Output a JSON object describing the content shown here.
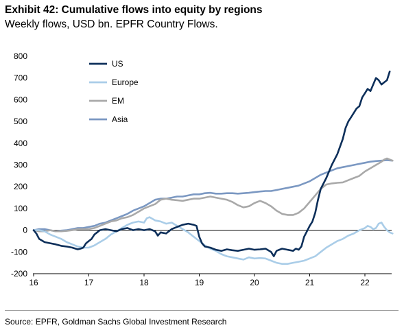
{
  "title": "Exhibit 42: Cumulative flows into equity by regions",
  "subtitle": "Weekly flows, USD bn. EPFR Country Flows.",
  "source": "Source: EPFR, Goldman Sachs Global Investment Research",
  "chart_data": {
    "type": "line",
    "xlim": [
      16,
      22.5
    ],
    "ylim": [
      -200,
      800
    ],
    "x_ticks": [
      16,
      17,
      18,
      19,
      20,
      21,
      22
    ],
    "x_tick_labels": [
      "16",
      "17",
      "18",
      "19",
      "20",
      "21",
      "22"
    ],
    "y_ticks": [
      -200,
      -100,
      0,
      100,
      200,
      300,
      400,
      500,
      600,
      700,
      800
    ],
    "y_tick_labels": [
      "-200",
      "-100",
      "0",
      "100",
      "200",
      "300",
      "400",
      "500",
      "600",
      "700",
      "800"
    ],
    "grid": false,
    "zero_line": true,
    "legend": {
      "position": "top-left",
      "entries": [
        "US",
        "Europe",
        "EM",
        "Asia"
      ]
    },
    "series": [
      {
        "name": "US",
        "color": "#0d2f5a",
        "points": [
          [
            16.0,
            0
          ],
          [
            16.05,
            -15
          ],
          [
            16.1,
            -40
          ],
          [
            16.2,
            -55
          ],
          [
            16.3,
            -60
          ],
          [
            16.4,
            -65
          ],
          [
            16.5,
            -72
          ],
          [
            16.6,
            -75
          ],
          [
            16.7,
            -80
          ],
          [
            16.8,
            -88
          ],
          [
            16.85,
            -85
          ],
          [
            16.9,
            -80
          ],
          [
            16.95,
            -60
          ],
          [
            17.0,
            -50
          ],
          [
            17.05,
            -40
          ],
          [
            17.1,
            -20
          ],
          [
            17.15,
            -10
          ],
          [
            17.2,
            0
          ],
          [
            17.3,
            5
          ],
          [
            17.4,
            0
          ],
          [
            17.5,
            -5
          ],
          [
            17.6,
            5
          ],
          [
            17.7,
            10
          ],
          [
            17.8,
            0
          ],
          [
            17.9,
            5
          ],
          [
            18.0,
            0
          ],
          [
            18.1,
            5
          ],
          [
            18.2,
            -5
          ],
          [
            18.25,
            -25
          ],
          [
            18.3,
            -10
          ],
          [
            18.4,
            -15
          ],
          [
            18.5,
            5
          ],
          [
            18.6,
            15
          ],
          [
            18.7,
            25
          ],
          [
            18.8,
            30
          ],
          [
            18.9,
            25
          ],
          [
            18.95,
            20
          ],
          [
            19.0,
            -30
          ],
          [
            19.05,
            -60
          ],
          [
            19.1,
            -75
          ],
          [
            19.2,
            -80
          ],
          [
            19.3,
            -90
          ],
          [
            19.4,
            -95
          ],
          [
            19.5,
            -88
          ],
          [
            19.6,
            -92
          ],
          [
            19.7,
            -95
          ],
          [
            19.8,
            -90
          ],
          [
            19.9,
            -85
          ],
          [
            20.0,
            -90
          ],
          [
            20.1,
            -88
          ],
          [
            20.2,
            -85
          ],
          [
            20.3,
            -100
          ],
          [
            20.35,
            -120
          ],
          [
            20.4,
            -95
          ],
          [
            20.5,
            -85
          ],
          [
            20.6,
            -90
          ],
          [
            20.7,
            -95
          ],
          [
            20.75,
            -85
          ],
          [
            20.8,
            -90
          ],
          [
            20.85,
            -75
          ],
          [
            20.9,
            -30
          ],
          [
            20.95,
            -5
          ],
          [
            21.0,
            20
          ],
          [
            21.05,
            40
          ],
          [
            21.1,
            80
          ],
          [
            21.15,
            140
          ],
          [
            21.2,
            190
          ],
          [
            21.3,
            240
          ],
          [
            21.4,
            300
          ],
          [
            21.5,
            350
          ],
          [
            21.6,
            420
          ],
          [
            21.65,
            470
          ],
          [
            21.7,
            500
          ],
          [
            21.75,
            520
          ],
          [
            21.8,
            540
          ],
          [
            21.85,
            560
          ],
          [
            21.9,
            570
          ],
          [
            21.95,
            610
          ],
          [
            22.0,
            630
          ],
          [
            22.05,
            650
          ],
          [
            22.1,
            640
          ],
          [
            22.15,
            670
          ],
          [
            22.2,
            700
          ],
          [
            22.25,
            690
          ],
          [
            22.3,
            670
          ],
          [
            22.35,
            680
          ],
          [
            22.4,
            690
          ],
          [
            22.45,
            730
          ]
        ]
      },
      {
        "name": "Europe",
        "color": "#aacde8",
        "points": [
          [
            16.0,
            0
          ],
          [
            16.1,
            0
          ],
          [
            16.2,
            -5
          ],
          [
            16.3,
            -20
          ],
          [
            16.4,
            -30
          ],
          [
            16.5,
            -40
          ],
          [
            16.6,
            -55
          ],
          [
            16.7,
            -65
          ],
          [
            16.8,
            -75
          ],
          [
            16.9,
            -80
          ],
          [
            17.0,
            -80
          ],
          [
            17.1,
            -70
          ],
          [
            17.2,
            -55
          ],
          [
            17.3,
            -40
          ],
          [
            17.4,
            -20
          ],
          [
            17.5,
            -5
          ],
          [
            17.6,
            10
          ],
          [
            17.7,
            25
          ],
          [
            17.8,
            35
          ],
          [
            17.9,
            40
          ],
          [
            18.0,
            35
          ],
          [
            18.05,
            55
          ],
          [
            18.1,
            60
          ],
          [
            18.2,
            45
          ],
          [
            18.3,
            40
          ],
          [
            18.4,
            30
          ],
          [
            18.5,
            35
          ],
          [
            18.6,
            20
          ],
          [
            18.7,
            5
          ],
          [
            18.8,
            -10
          ],
          [
            18.9,
            -30
          ],
          [
            19.0,
            -50
          ],
          [
            19.1,
            -70
          ],
          [
            19.2,
            -85
          ],
          [
            19.3,
            -95
          ],
          [
            19.4,
            -110
          ],
          [
            19.5,
            -120
          ],
          [
            19.6,
            -125
          ],
          [
            19.7,
            -130
          ],
          [
            19.8,
            -135
          ],
          [
            19.9,
            -125
          ],
          [
            20.0,
            -130
          ],
          [
            20.1,
            -128
          ],
          [
            20.2,
            -130
          ],
          [
            20.3,
            -140
          ],
          [
            20.4,
            -150
          ],
          [
            20.5,
            -155
          ],
          [
            20.6,
            -155
          ],
          [
            20.7,
            -150
          ],
          [
            20.8,
            -145
          ],
          [
            20.9,
            -140
          ],
          [
            21.0,
            -130
          ],
          [
            21.1,
            -120
          ],
          [
            21.2,
            -100
          ],
          [
            21.3,
            -80
          ],
          [
            21.4,
            -65
          ],
          [
            21.5,
            -50
          ],
          [
            21.6,
            -40
          ],
          [
            21.7,
            -25
          ],
          [
            21.8,
            -15
          ],
          [
            21.9,
            0
          ],
          [
            22.0,
            10
          ],
          [
            22.05,
            20
          ],
          [
            22.1,
            15
          ],
          [
            22.15,
            5
          ],
          [
            22.2,
            10
          ],
          [
            22.25,
            30
          ],
          [
            22.3,
            35
          ],
          [
            22.35,
            15
          ],
          [
            22.4,
            0
          ],
          [
            22.45,
            -10
          ],
          [
            22.5,
            -15
          ]
        ]
      },
      {
        "name": "EM",
        "color": "#a9a9a9",
        "points": [
          [
            16.0,
            0
          ],
          [
            16.1,
            -5
          ],
          [
            16.2,
            -5
          ],
          [
            16.3,
            0
          ],
          [
            16.4,
            -5
          ],
          [
            16.5,
            -5
          ],
          [
            16.6,
            -3
          ],
          [
            16.7,
            0
          ],
          [
            16.8,
            5
          ],
          [
            16.9,
            5
          ],
          [
            17.0,
            5
          ],
          [
            17.1,
            10
          ],
          [
            17.2,
            20
          ],
          [
            17.3,
            30
          ],
          [
            17.4,
            40
          ],
          [
            17.5,
            45
          ],
          [
            17.6,
            55
          ],
          [
            17.7,
            60
          ],
          [
            17.8,
            70
          ],
          [
            17.9,
            85
          ],
          [
            18.0,
            100
          ],
          [
            18.1,
            110
          ],
          [
            18.2,
            120
          ],
          [
            18.3,
            140
          ],
          [
            18.4,
            145
          ],
          [
            18.5,
            140
          ],
          [
            18.6,
            138
          ],
          [
            18.7,
            135
          ],
          [
            18.8,
            140
          ],
          [
            18.9,
            145
          ],
          [
            19.0,
            145
          ],
          [
            19.1,
            150
          ],
          [
            19.2,
            155
          ],
          [
            19.3,
            150
          ],
          [
            19.4,
            145
          ],
          [
            19.5,
            140
          ],
          [
            19.6,
            130
          ],
          [
            19.7,
            115
          ],
          [
            19.8,
            105
          ],
          [
            19.9,
            110
          ],
          [
            20.0,
            125
          ],
          [
            20.1,
            135
          ],
          [
            20.2,
            125
          ],
          [
            20.3,
            110
          ],
          [
            20.4,
            90
          ],
          [
            20.5,
            75
          ],
          [
            20.6,
            70
          ],
          [
            20.7,
            70
          ],
          [
            20.8,
            80
          ],
          [
            20.9,
            100
          ],
          [
            21.0,
            130
          ],
          [
            21.1,
            160
          ],
          [
            21.2,
            190
          ],
          [
            21.3,
            210
          ],
          [
            21.4,
            215
          ],
          [
            21.5,
            218
          ],
          [
            21.6,
            220
          ],
          [
            21.7,
            230
          ],
          [
            21.8,
            240
          ],
          [
            21.9,
            250
          ],
          [
            22.0,
            270
          ],
          [
            22.1,
            285
          ],
          [
            22.2,
            300
          ],
          [
            22.3,
            315
          ],
          [
            22.35,
            325
          ],
          [
            22.4,
            330
          ],
          [
            22.45,
            325
          ],
          [
            22.5,
            320
          ]
        ]
      },
      {
        "name": "Asia",
        "color": "#7b98c2",
        "points": [
          [
            16.0,
            0
          ],
          [
            16.1,
            5
          ],
          [
            16.2,
            5
          ],
          [
            16.3,
            0
          ],
          [
            16.4,
            -5
          ],
          [
            16.5,
            -2
          ],
          [
            16.6,
            0
          ],
          [
            16.7,
            5
          ],
          [
            16.8,
            10
          ],
          [
            16.9,
            10
          ],
          [
            17.0,
            15
          ],
          [
            17.1,
            20
          ],
          [
            17.2,
            30
          ],
          [
            17.3,
            35
          ],
          [
            17.4,
            45
          ],
          [
            17.5,
            55
          ],
          [
            17.6,
            65
          ],
          [
            17.7,
            75
          ],
          [
            17.8,
            90
          ],
          [
            17.9,
            100
          ],
          [
            18.0,
            110
          ],
          [
            18.1,
            125
          ],
          [
            18.2,
            140
          ],
          [
            18.3,
            145
          ],
          [
            18.4,
            145
          ],
          [
            18.5,
            150
          ],
          [
            18.6,
            155
          ],
          [
            18.7,
            155
          ],
          [
            18.8,
            160
          ],
          [
            18.9,
            165
          ],
          [
            19.0,
            165
          ],
          [
            19.1,
            170
          ],
          [
            19.2,
            172
          ],
          [
            19.3,
            168
          ],
          [
            19.4,
            168
          ],
          [
            19.5,
            170
          ],
          [
            19.6,
            170
          ],
          [
            19.7,
            168
          ],
          [
            19.8,
            170
          ],
          [
            19.9,
            172
          ],
          [
            20.0,
            175
          ],
          [
            20.1,
            178
          ],
          [
            20.2,
            180
          ],
          [
            20.3,
            180
          ],
          [
            20.4,
            185
          ],
          [
            20.5,
            190
          ],
          [
            20.6,
            195
          ],
          [
            20.7,
            200
          ],
          [
            20.8,
            205
          ],
          [
            20.9,
            215
          ],
          [
            21.0,
            225
          ],
          [
            21.1,
            240
          ],
          [
            21.2,
            255
          ],
          [
            21.3,
            265
          ],
          [
            21.4,
            275
          ],
          [
            21.5,
            285
          ],
          [
            21.6,
            290
          ],
          [
            21.7,
            295
          ],
          [
            21.8,
            300
          ],
          [
            21.9,
            305
          ],
          [
            22.0,
            310
          ],
          [
            22.1,
            315
          ],
          [
            22.2,
            318
          ],
          [
            22.3,
            320
          ],
          [
            22.4,
            322
          ],
          [
            22.5,
            320
          ]
        ]
      }
    ]
  }
}
